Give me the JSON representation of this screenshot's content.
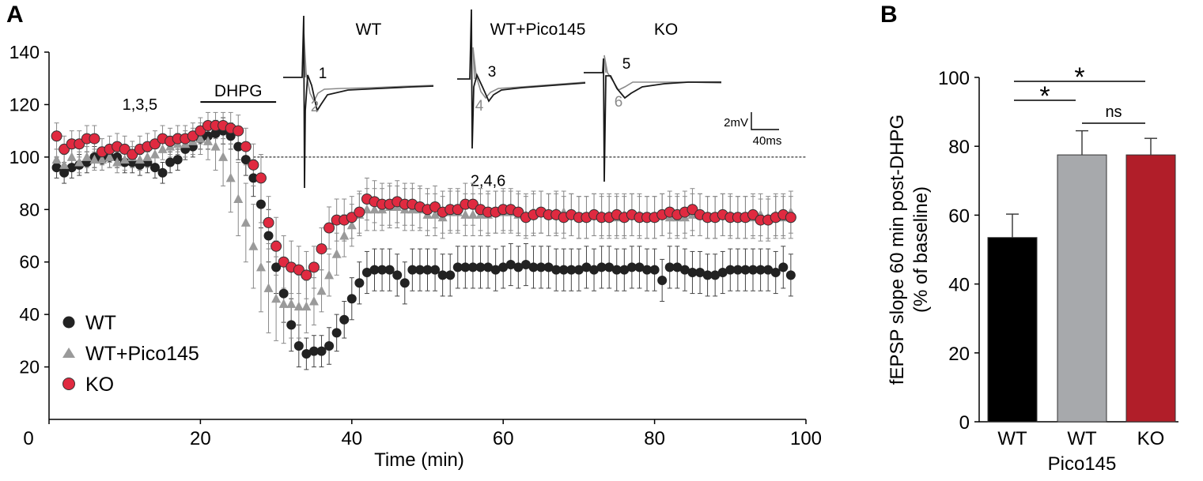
{
  "chart_data": [
    {
      "panel": "A",
      "type": "scatter",
      "xlabel": "Time (min)",
      "ylabel": "",
      "xlim": [
        0,
        100
      ],
      "ylim": [
        0,
        140
      ],
      "xticks": [
        "0",
        "20",
        "40",
        "60",
        "80",
        "100"
      ],
      "yticks": [
        "20",
        "40",
        "60",
        "80",
        "100",
        "120",
        "140"
      ],
      "baseline": 100,
      "dhpg_label": "DHPG",
      "dhpg_interval": [
        20,
        30
      ],
      "point_labels": [
        "1,3,5",
        "2,4,6"
      ],
      "point_label_pos": [
        [
          12,
          118
        ],
        [
          58,
          89
        ]
      ],
      "legend": [
        "WT",
        "WT+Pico145",
        "KO"
      ],
      "trace_titles": [
        "WT",
        "WT+Pico145",
        "KO"
      ],
      "trace_numbers": [
        [
          "1",
          "2"
        ],
        [
          "3",
          "4"
        ],
        [
          "5",
          "6"
        ]
      ],
      "scalebar_v": "2mV",
      "scalebar_h": "40ms",
      "colors": {
        "WT": "#222222",
        "WT+Pico145": "#9a9a9a",
        "KO": "#e02a40",
        "trace_base": "#222222",
        "trace_post": "#8a8a8a"
      },
      "x": [
        1,
        2,
        3,
        4,
        5,
        6,
        7,
        8,
        9,
        10,
        11,
        12,
        13,
        14,
        15,
        16,
        17,
        18,
        19,
        20,
        21,
        22,
        23,
        24,
        25,
        26,
        27,
        28,
        29,
        30,
        31,
        32,
        33,
        34,
        35,
        36,
        37,
        38,
        39,
        40,
        41,
        42,
        43,
        44,
        45,
        46,
        47,
        48,
        49,
        50,
        51,
        52,
        53,
        54,
        55,
        56,
        57,
        58,
        59,
        60,
        61,
        62,
        63,
        64,
        65,
        66,
        67,
        68,
        69,
        70,
        71,
        72,
        73,
        74,
        75,
        76,
        77,
        78,
        79,
        80,
        81,
        82,
        83,
        84,
        85,
        86,
        87,
        88,
        89,
        90,
        91,
        92,
        93,
        94,
        95,
        96,
        97,
        98
      ],
      "series": [
        {
          "name": "WT",
          "values": [
            96,
            94,
            96,
            97,
            98,
            100,
            99,
            100,
            100,
            98,
            98,
            97,
            98,
            96,
            94,
            98,
            99,
            103,
            104,
            107,
            108,
            109,
            110,
            108,
            104,
            99,
            92,
            82,
            70,
            58,
            48,
            36,
            28,
            25,
            26,
            26,
            28,
            33,
            38,
            46,
            52,
            56,
            57,
            57,
            57,
            55,
            52,
            57,
            57,
            57,
            57,
            55,
            55,
            58,
            58,
            58,
            58,
            58,
            57,
            58,
            59,
            58,
            59,
            58,
            58,
            58,
            57,
            57,
            57,
            57,
            58,
            57,
            58,
            58,
            57,
            57,
            58,
            58,
            57,
            57,
            53,
            58,
            58,
            57,
            56,
            56,
            55,
            55,
            56,
            57,
            57,
            57,
            57,
            57,
            57,
            56,
            58,
            55
          ],
          "sem": [
            4,
            4,
            4,
            4,
            4,
            4,
            4,
            4,
            4,
            4,
            4,
            4,
            4,
            4,
            4,
            4,
            4,
            4,
            4,
            4,
            5,
            5,
            5,
            5,
            5,
            6,
            7,
            9,
            10,
            10,
            11,
            10,
            8,
            6,
            6,
            6,
            7,
            7,
            7,
            8,
            8,
            8,
            8,
            8,
            8,
            8,
            8,
            8,
            8,
            8,
            8,
            8,
            8,
            8,
            8,
            8,
            8,
            8,
            8,
            8,
            8,
            8,
            8,
            8,
            8,
            8,
            8,
            8,
            8,
            8,
            8,
            8,
            8,
            8,
            8,
            8,
            8,
            8,
            8,
            8,
            8,
            8,
            8,
            8,
            8,
            8,
            8,
            8,
            8,
            8,
            8,
            8,
            8,
            8,
            8,
            8,
            8,
            8
          ]
        },
        {
          "name": "WT+Pico145",
          "values": [
            99,
            97,
            100,
            98,
            100,
            99,
            99,
            100,
            98,
            99,
            100,
            99,
            100,
            101,
            103,
            104,
            105,
            105,
            106,
            107,
            106,
            104,
            100,
            92,
            84,
            75,
            66,
            58,
            50,
            46,
            44,
            44,
            43,
            43,
            45,
            49,
            55,
            63,
            70,
            74,
            78,
            80,
            80,
            80,
            81,
            81,
            80,
            80,
            80,
            78,
            78,
            77,
            79,
            79,
            78,
            78,
            78,
            78,
            79,
            79,
            79,
            78,
            78,
            79,
            79,
            78,
            79,
            79,
            78,
            77,
            77,
            78,
            78,
            78,
            77,
            78,
            78,
            78,
            77,
            77,
            78,
            77,
            77,
            77,
            78,
            78,
            77,
            77,
            78,
            78,
            77,
            77,
            77,
            78,
            77,
            78,
            77,
            79
          ],
          "sem": [
            4,
            4,
            4,
            4,
            4,
            4,
            4,
            4,
            4,
            4,
            4,
            4,
            4,
            4,
            4,
            4,
            4,
            5,
            5,
            6,
            7,
            9,
            11,
            13,
            14,
            15,
            16,
            17,
            17,
            16,
            15,
            13,
            12,
            10,
            9,
            8,
            8,
            8,
            8,
            8,
            8,
            8,
            8,
            8,
            8,
            8,
            8,
            8,
            8,
            8,
            8,
            8,
            8,
            8,
            8,
            8,
            8,
            8,
            8,
            8,
            8,
            8,
            8,
            8,
            8,
            8,
            8,
            8,
            8,
            8,
            8,
            8,
            8,
            8,
            8,
            8,
            8,
            8,
            8,
            8,
            8,
            8,
            8,
            8,
            8,
            8,
            8,
            8,
            8,
            8,
            8,
            8,
            8,
            8,
            8,
            8,
            8,
            8
          ]
        },
        {
          "name": "KO",
          "values": [
            108,
            103,
            105,
            105,
            107,
            107,
            102,
            103,
            104,
            103,
            101,
            103,
            104,
            105,
            107,
            106,
            107,
            107,
            108,
            110,
            112,
            112,
            112,
            111,
            110,
            104,
            97,
            92,
            75,
            66,
            60,
            58,
            57,
            55,
            58,
            65,
            73,
            76,
            76,
            77,
            79,
            84,
            83,
            82,
            82,
            83,
            82,
            82,
            81,
            80,
            81,
            79,
            80,
            80,
            82,
            82,
            80,
            79,
            79,
            80,
            80,
            79,
            77,
            78,
            79,
            78,
            78,
            77,
            78,
            77,
            77,
            78,
            77,
            77,
            78,
            77,
            78,
            77,
            77,
            77,
            78,
            79,
            78,
            79,
            80,
            78,
            77,
            77,
            78,
            77,
            77,
            77,
            78,
            76,
            76,
            77,
            78,
            77
          ],
          "sem": [
            5,
            5,
            5,
            5,
            5,
            5,
            5,
            5,
            5,
            5,
            5,
            5,
            5,
            5,
            5,
            5,
            5,
            5,
            5,
            5,
            5,
            5,
            5,
            6,
            6,
            7,
            8,
            9,
            10,
            11,
            10,
            10,
            9,
            9,
            8,
            8,
            8,
            8,
            8,
            8,
            8,
            8,
            8,
            8,
            8,
            8,
            8,
            8,
            8,
            8,
            8,
            8,
            8,
            8,
            8,
            8,
            8,
            8,
            8,
            8,
            8,
            8,
            8,
            8,
            8,
            8,
            8,
            8,
            8,
            8,
            8,
            8,
            8,
            8,
            8,
            8,
            8,
            8,
            8,
            8,
            8,
            8,
            8,
            8,
            8,
            8,
            8,
            8,
            8,
            8,
            8,
            8,
            8,
            8,
            8,
            8,
            8,
            8
          ]
        }
      ]
    },
    {
      "panel": "B",
      "type": "bar",
      "categories": [
        "WT",
        "WT",
        "KO"
      ],
      "group_label": "Pico145",
      "values": [
        53.5,
        77.5,
        77.5
      ],
      "errors": [
        6.8,
        7.0,
        4.8
      ],
      "colors": [
        "#000000",
        "#a7a9ac",
        "#b11e29"
      ],
      "ylabel": "fEPSP slope 60 min post-DHPG",
      "ylabel2": "(% of baseline)",
      "ylim": [
        0,
        100
      ],
      "yticks": [
        "0",
        "20",
        "40",
        "60",
        "80",
        "100"
      ],
      "significance": [
        {
          "from": 0,
          "to": 2,
          "label": "*"
        },
        {
          "from": 0,
          "to": 1,
          "label": "*"
        },
        {
          "from": 1,
          "to": 2,
          "label": "ns"
        }
      ]
    }
  ]
}
